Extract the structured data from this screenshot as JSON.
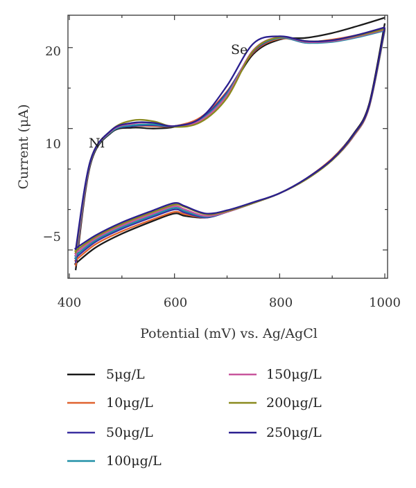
{
  "chart_data": {
    "type": "line",
    "title": "",
    "xlabel": "Potential (mV) vs. Ag/AgCl",
    "ylabel": "Current (μA)",
    "xlim": [
      400,
      1000
    ],
    "ylim": [
      -8.5,
      24
    ],
    "x_ticks": [
      "400",
      "600",
      "800",
      "1000"
    ],
    "y_ticks": [
      "−5",
      "10",
      "20"
    ],
    "grid": false,
    "legend_position": "below",
    "annotations": [
      {
        "text": "Ni",
        "x": 453,
        "y": 10
      },
      {
        "text": "Se",
        "x": 720,
        "y": 20
      }
    ],
    "series": [
      {
        "name": "5μg/L",
        "color": "#1a1a1a",
        "forward": {
          "x": [
            412,
            440,
            480,
            520,
            560,
            600,
            650,
            700,
            750,
            800,
            850,
            900,
            950,
            1000
          ],
          "y": [
            -7.5,
            5.5,
            9.5,
            10.1,
            10.0,
            10.2,
            11.2,
            14.3,
            19.2,
            21.0,
            21.2,
            21.8,
            22.7,
            23.7
          ]
        },
        "reverse": {
          "x": [
            1000,
            970,
            940,
            900,
            850,
            800,
            750,
            700,
            660,
            620,
            600,
            560,
            500,
            450,
            410
          ],
          "y": [
            23.0,
            13.0,
            9.3,
            6.3,
            3.8,
            2.0,
            0.8,
            -0.3,
            -1.0,
            -0.8,
            -0.5,
            -1.4,
            -3.0,
            -4.7,
            -6.8
          ]
        }
      },
      {
        "name": "10μg/L",
        "color": "#e0622f",
        "forward": {
          "x": [
            412,
            440,
            480,
            520,
            560,
            600,
            650,
            700,
            750,
            800,
            850,
            900,
            950,
            1000
          ],
          "y": [
            -7.0,
            5.7,
            9.6,
            10.3,
            10.3,
            10.3,
            11.4,
            14.6,
            19.4,
            21.1,
            20.7,
            21.0,
            21.6,
            22.5
          ]
        },
        "reverse": {
          "x": [
            1000,
            970,
            940,
            900,
            850,
            800,
            750,
            700,
            660,
            620,
            600,
            560,
            500,
            450,
            410
          ],
          "y": [
            22.4,
            12.8,
            9.2,
            6.3,
            3.8,
            2.0,
            0.8,
            -0.3,
            -1.0,
            -0.6,
            -0.3,
            -1.2,
            -2.7,
            -4.3,
            -6.4
          ]
        }
      },
      {
        "name": "50μg/L",
        "color": "#3a2fa0",
        "forward": {
          "x": [
            412,
            440,
            480,
            520,
            560,
            600,
            650,
            700,
            750,
            800,
            850,
            900,
            950,
            1000
          ],
          "y": [
            -6.6,
            5.8,
            9.6,
            10.3,
            10.4,
            10.3,
            11.2,
            14.5,
            19.5,
            21.2,
            20.6,
            20.8,
            21.4,
            22.3
          ]
        },
        "reverse": {
          "x": [
            1000,
            970,
            940,
            900,
            850,
            800,
            750,
            700,
            660,
            620,
            600,
            560,
            500,
            450,
            410
          ],
          "y": [
            22.3,
            12.7,
            9.1,
            6.2,
            3.8,
            2.0,
            0.8,
            -0.3,
            -1.0,
            -0.4,
            0.0,
            -0.9,
            -2.4,
            -4.0,
            -6.1
          ]
        }
      },
      {
        "name": "100μg/L",
        "color": "#1f8fa6",
        "forward": {
          "x": [
            412,
            440,
            480,
            520,
            560,
            600,
            650,
            700,
            750,
            800,
            850,
            900,
            950,
            1000
          ],
          "y": [
            -6.2,
            5.8,
            9.6,
            10.4,
            10.5,
            10.3,
            11.1,
            14.3,
            19.6,
            21.2,
            20.6,
            20.7,
            21.3,
            22.1
          ]
        },
        "reverse": {
          "x": [
            1000,
            970,
            940,
            900,
            850,
            800,
            750,
            700,
            660,
            620,
            600,
            560,
            500,
            450,
            410
          ],
          "y": [
            22.1,
            12.6,
            9.0,
            6.1,
            3.7,
            2.0,
            0.8,
            -0.3,
            -0.9,
            -0.2,
            0.2,
            -0.7,
            -2.2,
            -3.8,
            -5.8
          ]
        }
      },
      {
        "name": "150μg/L",
        "color": "#c8559c",
        "forward": {
          "x": [
            412,
            440,
            480,
            520,
            560,
            600,
            650,
            700,
            750,
            800,
            850,
            900,
            950,
            1000
          ],
          "y": [
            -5.8,
            5.9,
            9.7,
            10.6,
            10.7,
            10.3,
            11.0,
            14.1,
            19.7,
            21.3,
            20.7,
            20.8,
            21.4,
            22.2
          ]
        },
        "reverse": {
          "x": [
            1000,
            970,
            940,
            900,
            850,
            800,
            750,
            700,
            660,
            620,
            600,
            560,
            500,
            450,
            410
          ],
          "y": [
            22.2,
            12.6,
            9.0,
            6.1,
            3.7,
            2.0,
            0.8,
            -0.3,
            -0.8,
            0.0,
            0.4,
            -0.5,
            -2.0,
            -3.6,
            -5.5
          ]
        }
      },
      {
        "name": "200μg/L",
        "color": "#8a8a1e",
        "forward": {
          "x": [
            412,
            440,
            480,
            520,
            560,
            600,
            650,
            700,
            750,
            800,
            850,
            900,
            950,
            1000
          ],
          "y": [
            -5.4,
            6.0,
            9.8,
            11.0,
            10.9,
            10.2,
            10.8,
            13.8,
            19.6,
            21.3,
            20.8,
            20.9,
            21.5,
            22.3
          ]
        },
        "reverse": {
          "x": [
            1000,
            970,
            940,
            900,
            850,
            800,
            750,
            700,
            660,
            620,
            600,
            560,
            500,
            450,
            410
          ],
          "y": [
            22.3,
            12.7,
            9.1,
            6.1,
            3.7,
            2.0,
            0.8,
            -0.2,
            -0.6,
            0.3,
            0.6,
            -0.3,
            -1.8,
            -3.4,
            -5.2
          ]
        }
      },
      {
        "name": "250μg/L",
        "color": "#2a1f8f",
        "forward": {
          "x": [
            412,
            440,
            480,
            520,
            560,
            600,
            650,
            700,
            750,
            800,
            850,
            900,
            950,
            1000
          ],
          "y": [
            -5.0,
            6.0,
            9.8,
            10.7,
            10.7,
            10.3,
            11.3,
            15.3,
            20.5,
            21.4,
            20.8,
            20.9,
            21.6,
            22.5
          ]
        },
        "reverse": {
          "x": [
            1000,
            970,
            940,
            900,
            850,
            800,
            750,
            700,
            660,
            620,
            600,
            560,
            500,
            450,
            410
          ],
          "y": [
            22.5,
            12.8,
            9.2,
            6.2,
            3.8,
            2.0,
            0.9,
            -0.1,
            -0.5,
            0.4,
            0.8,
            -0.1,
            -1.6,
            -3.2,
            -4.9
          ]
        }
      }
    ]
  }
}
